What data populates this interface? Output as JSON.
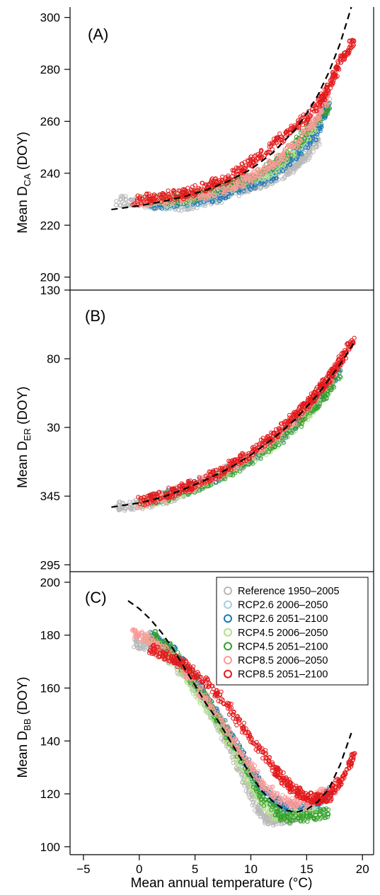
{
  "figure": {
    "xlabel": "Mean annual temperature (°C)",
    "xticks": [
      -5,
      0,
      5,
      10,
      15,
      20
    ],
    "xlim": [
      -6.2,
      21.0
    ]
  },
  "legend": {
    "placement": "top-right of panel C",
    "entries": [
      {
        "label": "Reference 1950–2005",
        "color": "#b8b8b8"
      },
      {
        "label": "RCP2.6 2006–2050",
        "color": "#a6cee3"
      },
      {
        "label": "RCP2.6 2051–2100",
        "color": "#1f78b4"
      },
      {
        "label": "RCP4.5 2006–2050",
        "color": "#b2df8a"
      },
      {
        "label": "RCP4.5 2051–2100",
        "color": "#33a02c"
      },
      {
        "label": "RCP8.5 2006–2050",
        "color": "#fb9a99"
      },
      {
        "label": "RCP8.5 2051–2100",
        "color": "#e31a1c"
      }
    ]
  },
  "chart_data": [
    {
      "type": "scatter",
      "panel_label": "(A)",
      "ylabel_main": "Mean D",
      "ylabel_sub": "CA",
      "ylabel_tail": " (DOY)",
      "yticks": [
        "200",
        "220",
        "240",
        "260",
        "280",
        "300"
      ],
      "ytick_values": [
        200,
        220,
        240,
        260,
        280,
        300
      ],
      "ylim": [
        195,
        304
      ],
      "fit_line": {
        "x": [
          -2.5,
          0,
          2,
          4,
          6,
          8,
          10,
          12,
          14,
          15,
          16,
          17,
          18,
          19
        ],
        "y": [
          226,
          227.5,
          229,
          231,
          233.5,
          237,
          241.5,
          248,
          257,
          263,
          270,
          279,
          290,
          304
        ]
      },
      "series": [
        {
          "color": "#b8b8b8",
          "x": [
            -2.0,
            0.5,
            3,
            6,
            9,
            11,
            13,
            14,
            15,
            16
          ],
          "y": [
            229.5,
            228.5,
            227,
            229,
            233,
            236,
            240,
            243,
            247,
            252
          ]
        },
        {
          "color": "#a6cee3",
          "x": [
            0,
            3,
            6,
            9,
            11,
            13,
            15,
            16
          ],
          "y": [
            229,
            228,
            230,
            235,
            238,
            244,
            252,
            258
          ]
        },
        {
          "color": "#1f78b4",
          "x": [
            1,
            4,
            7,
            9,
            12,
            14,
            16,
            17
          ],
          "y": [
            228,
            229,
            231,
            234,
            239,
            247,
            256,
            267
          ]
        },
        {
          "color": "#b2df8a",
          "x": [
            0,
            3,
            6,
            9,
            12,
            14,
            16
          ],
          "y": [
            230,
            229,
            232,
            236,
            241,
            249,
            259
          ]
        },
        {
          "color": "#33a02c",
          "x": [
            1,
            4,
            7,
            10,
            13,
            15,
            17
          ],
          "y": [
            230,
            230,
            234,
            238,
            246,
            256,
            266
          ]
        },
        {
          "color": "#fb9a99",
          "x": [
            -0.5,
            2,
            5,
            8,
            10,
            12,
            14,
            16,
            17
          ],
          "y": [
            229,
            230,
            231,
            234,
            238,
            244,
            251,
            262,
            271
          ]
        },
        {
          "color": "#e31a1c",
          "x": [
            -0.5,
            2,
            4,
            6,
            8,
            10,
            12,
            14,
            16,
            17,
            18,
            19.2
          ],
          "y": [
            229.5,
            231,
            232,
            235,
            238,
            244,
            251,
            258,
            266,
            273,
            283,
            291
          ]
        }
      ]
    },
    {
      "type": "scatter",
      "panel_label": "(B)",
      "ylabel_main": "Mean D",
      "ylabel_sub": "ER",
      "ylabel_tail": " (DOY)",
      "yticks": [
        "295",
        "345",
        "30",
        "80",
        "130"
      ],
      "ytick_values": [
        295,
        345,
        395,
        445,
        495
      ],
      "ylim": [
        290,
        495
      ],
      "fit_line": {
        "x": [
          -2.5,
          0,
          2,
          4,
          6,
          8,
          10,
          12,
          14,
          16,
          18,
          19.2
        ],
        "y": [
          337,
          340,
          344,
          350,
          357,
          365,
          375,
          387,
          401,
          419,
          441,
          456
        ]
      },
      "series": [
        {
          "color": "#b8b8b8",
          "x": [
            -2.0,
            0,
            2,
            4,
            6,
            8,
            10,
            12,
            14,
            16
          ],
          "y": [
            337,
            339,
            342,
            348,
            355,
            363,
            372,
            383,
            397,
            413
          ]
        },
        {
          "color": "#a6cee3",
          "x": [
            0,
            3,
            6,
            9,
            12,
            15,
            17
          ],
          "y": [
            340,
            346,
            356,
            368,
            384,
            405,
            423
          ]
        },
        {
          "color": "#1f78b4",
          "x": [
            1,
            4,
            7,
            10,
            13,
            16,
            18
          ],
          "y": [
            343,
            349,
            359,
            373,
            390,
            415,
            436
          ]
        },
        {
          "color": "#b2df8a",
          "x": [
            0,
            3,
            6,
            9,
            12,
            15,
            17
          ],
          "y": [
            340,
            345,
            355,
            367,
            382,
            404,
            422
          ]
        },
        {
          "color": "#33a02c",
          "x": [
            1,
            4,
            7,
            10,
            13,
            16,
            18
          ],
          "y": [
            342,
            348,
            358,
            371,
            388,
            412,
            434
          ]
        },
        {
          "color": "#fb9a99",
          "x": [
            0,
            2,
            4,
            6,
            8,
            10,
            12,
            14,
            16,
            18
          ],
          "y": [
            340,
            344,
            350,
            357,
            365,
            375,
            387,
            401,
            419,
            441
          ]
        },
        {
          "color": "#e31a1c",
          "x": [
            0,
            2,
            4,
            6,
            8,
            10,
            12,
            14,
            15,
            16,
            17,
            18,
            19.2
          ],
          "y": [
            341,
            345,
            351,
            358,
            366,
            376,
            389,
            404,
            412,
            421,
            431,
            444,
            458
          ]
        }
      ]
    },
    {
      "type": "scatter",
      "panel_label": "(C)",
      "ylabel_main": "Mean D",
      "ylabel_sub": "BB",
      "ylabel_tail": " (DOY)",
      "yticks": [
        "100",
        "120",
        "140",
        "160",
        "180",
        "200"
      ],
      "ytick_values": [
        100,
        120,
        140,
        160,
        180,
        200
      ],
      "ylim": [
        97,
        204
      ],
      "fit_line": {
        "x": [
          -1,
          0,
          1,
          2,
          3,
          4,
          5,
          6,
          7,
          8,
          9,
          10,
          11,
          12,
          13,
          14,
          15,
          16,
          17,
          18,
          19
        ],
        "y": [
          193,
          190,
          186,
          181,
          175,
          168,
          161,
          154,
          148,
          141,
          134,
          127,
          121,
          117,
          114,
          113,
          114,
          117,
          122,
          131,
          143
        ]
      },
      "series": [
        {
          "color": "#b8b8b8",
          "x": [
            -0.5,
            1,
            3,
            5,
            7,
            9,
            10.5,
            11.5,
            12.5,
            14,
            15.5
          ],
          "y": [
            177,
            176,
            170,
            160,
            147,
            130,
            115,
            110,
            110,
            111,
            114
          ]
        },
        {
          "color": "#a6cee3",
          "x": [
            0.5,
            2,
            4,
            6,
            8,
            10,
            12,
            14,
            16
          ],
          "y": [
            178,
            176,
            167,
            155,
            142,
            127,
            116,
            113,
            117
          ]
        },
        {
          "color": "#1f78b4",
          "x": [
            1,
            3,
            5,
            7,
            9,
            11,
            13,
            15,
            17
          ],
          "y": [
            180,
            174,
            163,
            150,
            137,
            122,
            115,
            114,
            121
          ]
        },
        {
          "color": "#b2df8a",
          "x": [
            0.5,
            2,
            4,
            6,
            8,
            10,
            12,
            14,
            16
          ],
          "y": [
            179,
            175,
            166,
            153,
            140,
            122,
            112,
            112,
            113
          ]
        },
        {
          "color": "#33a02c",
          "x": [
            1,
            3,
            5,
            7,
            9,
            11,
            13,
            15,
            17
          ],
          "y": [
            181,
            174,
            162,
            149,
            135,
            118,
            111,
            111,
            113
          ]
        },
        {
          "color": "#fb9a99",
          "x": [
            -0.5,
            1,
            3,
            5,
            7,
            9,
            11,
            13,
            15,
            17
          ],
          "y": [
            181,
            178,
            172,
            162,
            150,
            136,
            124,
            117,
            116,
            122
          ]
        },
        {
          "color": "#e31a1c",
          "x": [
            1,
            2.5,
            4,
            6,
            8,
            10,
            12,
            13,
            14,
            15,
            16,
            17,
            18,
            19.2
          ],
          "y": [
            175,
            172,
            169,
            162,
            153,
            141,
            130,
            125,
            121,
            119,
            118,
            119,
            125,
            134
          ]
        }
      ]
    }
  ]
}
